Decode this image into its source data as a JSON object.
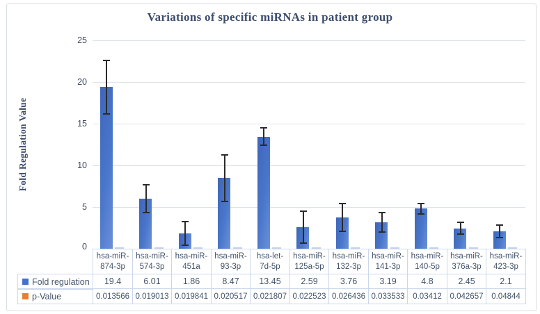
{
  "chart_data": {
    "type": "bar",
    "title": "Variations of specific miRNAs in patient group",
    "ylabel": "Fold Regulation Value",
    "xlabel": "",
    "ylim": [
      0,
      25
    ],
    "yticks": [
      0,
      5,
      10,
      15,
      20,
      25
    ],
    "grid": true,
    "legend_position": "table-left",
    "categories": [
      "hsa-miR-874-3p",
      "hsa-miR-574-3p",
      "hsa-miR-451a",
      "hsa-miR-93-3p",
      "hsa-let-7d-5p",
      "hsa-miR-125a-5p",
      "hsa-miR-132-3p",
      "hsa-miR-141-3p",
      "hsa-miR-140-5p",
      "hsa-miR-376a-3p",
      "hsa-miR-423-3p"
    ],
    "category_lines": [
      [
        "hsa-miR-",
        "874-3p"
      ],
      [
        "hsa-miR-",
        "574-3p"
      ],
      [
        "hsa-miR-",
        "451a"
      ],
      [
        "hsa-miR-",
        "93-3p"
      ],
      [
        "hsa-let-",
        "7d-5p"
      ],
      [
        "hsa-miR-",
        "125a-5p"
      ],
      [
        "hsa-miR-",
        "132-3p"
      ],
      [
        "hsa-miR-",
        "141-3p"
      ],
      [
        "hsa-miR-",
        "140-5p"
      ],
      [
        "hsa-miR-",
        "376a-3p"
      ],
      [
        "hsa-miR-",
        "423-3p"
      ]
    ],
    "series": [
      {
        "name": "Fold regulation",
        "color": "#4472C4",
        "values": [
          19.4,
          6.01,
          1.86,
          8.47,
          13.45,
          2.59,
          3.76,
          3.19,
          4.8,
          2.45,
          2.1
        ],
        "error_bars": [
          3.3,
          1.75,
          1.5,
          2.85,
          1.15,
          2.0,
          1.75,
          1.25,
          0.7,
          0.8,
          0.85
        ]
      },
      {
        "name": "p-Value",
        "color": "#ED7D31",
        "values": [
          0.013566,
          0.019013,
          0.019841,
          0.020517,
          0.021807,
          0.022523,
          0.026436,
          0.033533,
          0.03412,
          0.042657,
          0.04844
        ]
      }
    ]
  },
  "colors": {
    "bar_blue": "#4472C4",
    "legend_orange": "#ED7D31",
    "grid": "#DCE2EA",
    "table_border": "#CBD7EC",
    "title_text": "#3D4E6E",
    "table_text": "#44546A",
    "error_bar": "#2B2B2B",
    "p_bar_dash": "#C6D3E9",
    "figure_border": "#D9DEE7"
  }
}
